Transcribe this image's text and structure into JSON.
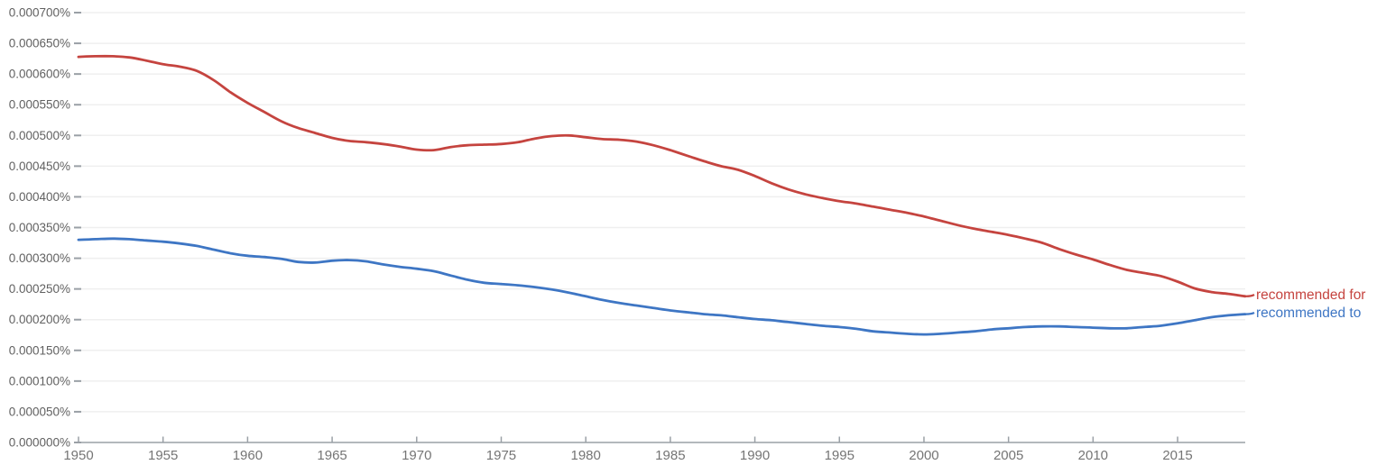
{
  "chart_data": {
    "type": "line",
    "title": "",
    "xlabel": "",
    "ylabel": "",
    "grid": true,
    "legend_position": "right-of-line-ends",
    "x_range": [
      1950,
      2019
    ],
    "ylim": [
      0,
      0.0007
    ],
    "y_unit": "%",
    "x_tick_values": [
      1950,
      1955,
      1960,
      1965,
      1970,
      1975,
      1980,
      1985,
      1990,
      1995,
      2000,
      2005,
      2010,
      2015
    ],
    "x_tick_labels": [
      "1950",
      "1955",
      "1960",
      "1965",
      "1970",
      "1975",
      "1980",
      "1985",
      "1990",
      "1995",
      "2000",
      "2005",
      "2010",
      "2015"
    ],
    "y_tick_values": [
      0,
      5e-05,
      0.0001,
      0.00015,
      0.0002,
      0.00025,
      0.0003,
      0.00035,
      0.0004,
      0.00045,
      0.0005,
      0.00055,
      0.0006,
      0.00065,
      0.0007
    ],
    "y_tick_labels": [
      "0.000000%",
      "0.000050%",
      "0.000100%",
      "0.000150%",
      "0.000200%",
      "0.000250%",
      "0.000300%",
      "0.000350%",
      "0.000400%",
      "0.000450%",
      "0.000500%",
      "0.000550%",
      "0.000600%",
      "0.000650%",
      "0.000700%"
    ],
    "x": [
      1950,
      1951,
      1952,
      1953,
      1954,
      1955,
      1956,
      1957,
      1958,
      1959,
      1960,
      1961,
      1962,
      1963,
      1964,
      1965,
      1966,
      1967,
      1968,
      1969,
      1970,
      1971,
      1972,
      1973,
      1974,
      1975,
      1976,
      1977,
      1978,
      1979,
      1980,
      1981,
      1982,
      1983,
      1984,
      1985,
      1986,
      1987,
      1988,
      1989,
      1990,
      1991,
      1992,
      1993,
      1994,
      1995,
      1996,
      1997,
      1998,
      1999,
      2000,
      2001,
      2002,
      2003,
      2004,
      2005,
      2006,
      2007,
      2008,
      2009,
      2010,
      2011,
      2012,
      2013,
      2014,
      2015,
      2016,
      2017,
      2018,
      2019
    ],
    "series": [
      {
        "name": "recommended for",
        "color": "#c5443f",
        "values": [
          0.000628,
          0.000629,
          0.000629,
          0.000627,
          0.000622,
          0.000616,
          0.000612,
          0.000605,
          0.00059,
          0.00057,
          0.000553,
          0.000538,
          0.000523,
          0.000512,
          0.000504,
          0.000496,
          0.000491,
          0.000489,
          0.000486,
          0.000482,
          0.000477,
          0.000476,
          0.000481,
          0.000484,
          0.000485,
          0.000486,
          0.000489,
          0.000495,
          0.000499,
          0.0005,
          0.000497,
          0.000494,
          0.000493,
          0.00049,
          0.000484,
          0.000476,
          0.000467,
          0.000458,
          0.00045,
          0.000444,
          0.000434,
          0.000422,
          0.000412,
          0.000404,
          0.000398,
          0.000393,
          0.000389,
          0.000384,
          0.000379,
          0.000374,
          0.000368,
          0.000361,
          0.000354,
          0.000348,
          0.000343,
          0.000338,
          0.000332,
          0.000325,
          0.000315,
          0.000306,
          0.000298,
          0.000289,
          0.000281,
          0.000276,
          0.000271,
          0.000262,
          0.000251,
          0.000245,
          0.000242,
          0.000238
        ]
      },
      {
        "name": "recommended to",
        "color": "#3e76c4",
        "values": [
          0.00033,
          0.000331,
          0.000332,
          0.000331,
          0.000329,
          0.000327,
          0.000324,
          0.00032,
          0.000314,
          0.000308,
          0.000304,
          0.000302,
          0.000299,
          0.000294,
          0.000293,
          0.000296,
          0.000297,
          0.000295,
          0.00029,
          0.000286,
          0.000283,
          0.000279,
          0.000272,
          0.000265,
          0.00026,
          0.000258,
          0.000256,
          0.000253,
          0.000249,
          0.000244,
          0.000238,
          0.000232,
          0.000227,
          0.000223,
          0.000219,
          0.000215,
          0.000212,
          0.000209,
          0.000207,
          0.000204,
          0.000201,
          0.000199,
          0.000196,
          0.000193,
          0.00019,
          0.000188,
          0.000185,
          0.000181,
          0.000179,
          0.000177,
          0.000176,
          0.000177,
          0.000179,
          0.000181,
          0.000184,
          0.000186,
          0.000188,
          0.000189,
          0.000189,
          0.000188,
          0.000187,
          0.000186,
          0.000186,
          0.000188,
          0.00019,
          0.000194,
          0.000199,
          0.000204,
          0.000207,
          0.000209
        ]
      }
    ]
  },
  "style_colors": {
    "axis": "#9aa0a6",
    "tick": "#9aa0a6",
    "gridline": "#efefef",
    "y_label_text": "#616161",
    "x_label_text": "#757575"
  }
}
